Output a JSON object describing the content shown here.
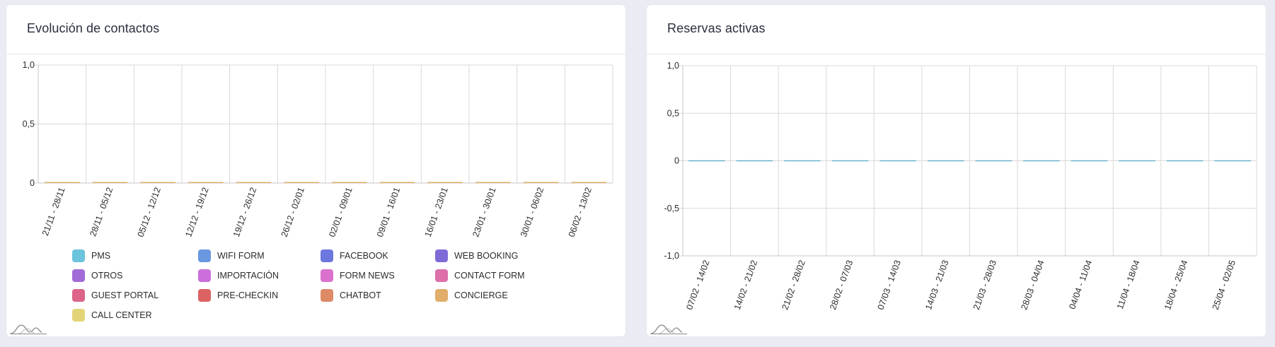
{
  "left_card": {
    "title": "Evolución de contactos"
  },
  "right_card": {
    "title": "Reservas activas"
  },
  "icons": [
    "wave-chart-icon"
  ],
  "chart_data": [
    {
      "type": "bar",
      "title": "Evolución de contactos",
      "categories": [
        "21/11 - 28/11",
        "28/11 - 05/12",
        "05/12 - 12/12",
        "12/12 - 19/12",
        "19/12 - 26/12",
        "26/12 - 02/01",
        "02/01 - 09/01",
        "09/01 - 16/01",
        "16/01 - 23/01",
        "23/01 - 30/01",
        "30/01 - 06/02",
        "06/02 - 13/02"
      ],
      "ylim": [
        0,
        1
      ],
      "yticks": [
        "1,0",
        "0,5",
        "0"
      ],
      "ytick_values": [
        1,
        0.5,
        0
      ],
      "grid": true,
      "legend_position": "bottom",
      "stacked": true,
      "series": [
        {
          "name": "PMS",
          "color": "#6cc3dc",
          "values": [
            0,
            0,
            0,
            0,
            0,
            0,
            0,
            0,
            0,
            0,
            0,
            0
          ]
        },
        {
          "name": "WIFI FORM",
          "color": "#6a97e0",
          "values": [
            0,
            0,
            0,
            0,
            0,
            0,
            0,
            0,
            0,
            0,
            0,
            0
          ]
        },
        {
          "name": "FACEBOOK",
          "color": "#6d78de",
          "values": [
            0,
            0,
            0,
            0,
            0,
            0,
            0,
            0,
            0,
            0,
            0,
            0
          ]
        },
        {
          "name": "WEB BOOKING",
          "color": "#7f6ad8",
          "values": [
            0,
            0,
            0,
            0,
            0,
            0,
            0,
            0,
            0,
            0,
            0,
            0
          ]
        },
        {
          "name": "OTROS",
          "color": "#a16cd8",
          "values": [
            0,
            0,
            0,
            0,
            0,
            0,
            0,
            0,
            0,
            0,
            0,
            0
          ]
        },
        {
          "name": "IMPORTACIÓN",
          "color": "#cb6fdc",
          "values": [
            0,
            0,
            0,
            0,
            0,
            0,
            0,
            0,
            0,
            0,
            0,
            0
          ]
        },
        {
          "name": "FORM NEWS",
          "color": "#da72cd",
          "values": [
            0,
            0,
            0,
            0,
            0,
            0,
            0,
            0,
            0,
            0,
            0,
            0
          ]
        },
        {
          "name": "CONTACT FORM",
          "color": "#dd6fa9",
          "values": [
            0,
            0,
            0,
            0,
            0,
            0,
            0,
            0,
            0,
            0,
            0,
            0
          ]
        },
        {
          "name": "GUEST PORTAL",
          "color": "#dc6488",
          "values": [
            0,
            0,
            0,
            0,
            0,
            0,
            0,
            0,
            0,
            0,
            0,
            0
          ]
        },
        {
          "name": "PRE-CHECKIN",
          "color": "#dc6364",
          "values": [
            0,
            0,
            0,
            0,
            0,
            0,
            0,
            0,
            0,
            0,
            0,
            0
          ]
        },
        {
          "name": "CHATBOT",
          "color": "#de8a67",
          "values": [
            0,
            0,
            0,
            0,
            0,
            0,
            0,
            0,
            0,
            0,
            0,
            0
          ]
        },
        {
          "name": "CONCIERGE",
          "color": "#e0ad6a",
          "values": [
            0,
            0,
            0,
            0,
            0,
            0,
            0,
            0,
            0,
            0,
            0,
            0
          ]
        },
        {
          "name": "CALL CENTER",
          "color": "#e3d577",
          "values": [
            0,
            0,
            0,
            0,
            0,
            0,
            0,
            0,
            0,
            0,
            0,
            0
          ]
        }
      ]
    },
    {
      "type": "line",
      "title": "Reservas activas",
      "categories": [
        "07/02 - 14/02",
        "14/02 - 21/02",
        "21/02 - 28/02",
        "28/02 - 07/03",
        "07/03 - 14/03",
        "14/03 - 21/03",
        "21/03 - 28/03",
        "28/03 - 04/04",
        "04/04 - 11/04",
        "11/04 - 18/04",
        "18/04 - 25/04",
        "25/04 - 02/05"
      ],
      "ylim": [
        -1,
        1
      ],
      "yticks": [
        "1,0",
        "0,5",
        "0",
        "-0,5",
        "-1,0"
      ],
      "ytick_values": [
        1,
        0.5,
        0,
        -0.5,
        -1
      ],
      "grid": true,
      "series": [
        {
          "color": "#6ab0cf",
          "values": [
            0,
            0,
            0,
            0,
            0,
            0,
            0,
            0,
            0,
            0,
            0,
            0
          ]
        }
      ]
    }
  ]
}
